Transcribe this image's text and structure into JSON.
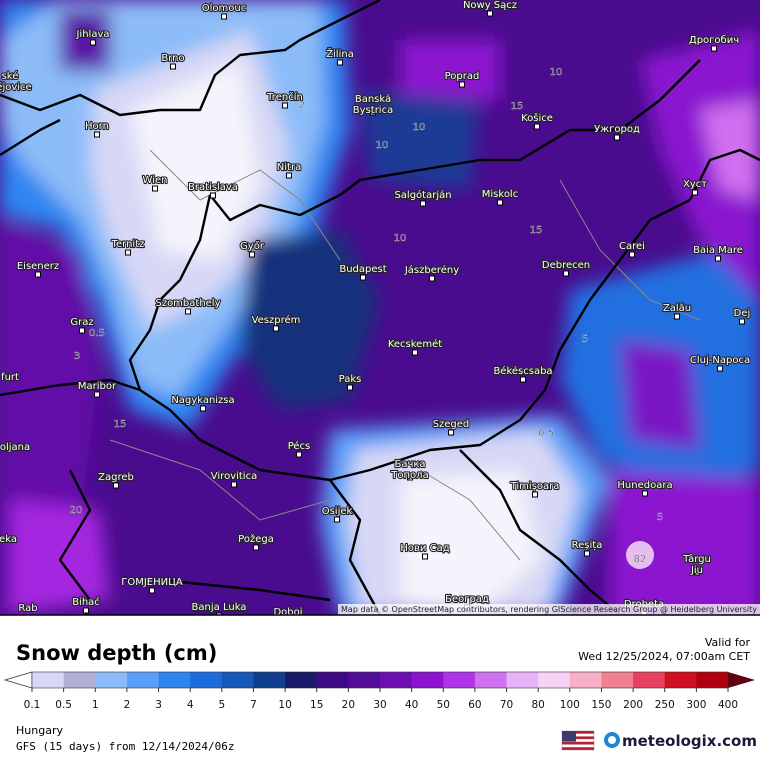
{
  "header": {
    "title": "Snow depth (cm)",
    "valid_label": "Valid for",
    "valid_time": "Wed 12/25/2024, 07:00am CET"
  },
  "footer": {
    "region": "Hungary",
    "model": "GFS (15 days) from 12/14/2024/06z",
    "brand": "meteologix.com"
  },
  "map": {
    "attribution": "Map data © OpenStreetMap contributors, rendering GIScience Research Group @ Heidelberg University",
    "cities": [
      "Olomouc",
      "Nowy Sącz",
      "Дрогобич",
      "Jihlava",
      "Brno",
      "Žilina",
      "Poprad",
      "ské",
      "ějovice",
      "Trenčín",
      "Banská Bystrica",
      "Košice",
      "Ужгород",
      "Horn",
      "Nitra",
      "Wien",
      "Bratislava",
      "Хуст",
      "Salgótarján",
      "Miskolc",
      "Ternitz",
      "Győr",
      "Carei",
      "Baia Mare",
      "Eisenerz",
      "Budapest",
      "Jászberény",
      "Debrecen",
      "Szombathely",
      "Zalău",
      "Graz",
      "Veszprém",
      "Dej",
      "Kecskemét",
      "Cluj-Napoca",
      "furt",
      "Paks",
      "Békéscsaba",
      "Maribor",
      "Nagykanizsa",
      "oljana",
      "Szeged",
      "Pécs",
      "Бачка Топола",
      "Zagreb",
      "Virovitica",
      "Hunedoara",
      "Timișoara",
      "Osijek",
      "Požega",
      "Reșița",
      "Нови Сад",
      "eka",
      "Târgu Jiu",
      "ГОМЈЕНИЦА",
      "Bihać",
      "Banja Luka",
      "Doboj",
      "Београд",
      "Drobeta",
      "Rab"
    ],
    "contour_labels": [
      2,
      10,
      10,
      15,
      10,
      15,
      10,
      5,
      3,
      0.5,
      0.5,
      15,
      82,
      20,
      5
    ]
  },
  "legend": {
    "ticks": [
      0.1,
      0.5,
      1,
      2,
      3,
      4,
      5,
      7,
      10,
      15,
      20,
      30,
      40,
      50,
      60,
      70,
      80,
      100,
      150,
      200,
      250,
      300,
      400
    ],
    "colors": [
      "#d8d8f6",
      "#b0b0d6",
      "#8cbcf8",
      "#5aa0f8",
      "#2d86f0",
      "#1c6cdc",
      "#1558b8",
      "#0f3f8e",
      "#1a1a6a",
      "#3c0a82",
      "#520c98",
      "#6c10b2",
      "#8c14d0",
      "#b034e8",
      "#d072f0",
      "#e8b2f8",
      "#f8d2f4",
      "#f8b0c8",
      "#f08090",
      "#e84060",
      "#d01020",
      "#b00010"
    ]
  }
}
